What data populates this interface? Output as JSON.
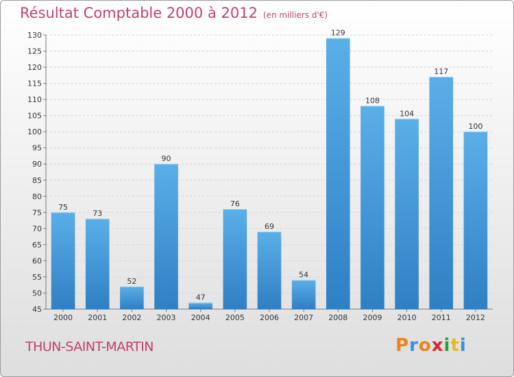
{
  "chart_data": {
    "type": "bar",
    "title": "Résultat Comptable 2000 à 2012",
    "subtitle": "(en milliers d'€)",
    "xlabel": "",
    "ylabel": "",
    "categories": [
      "2000",
      "2001",
      "2002",
      "2003",
      "2004",
      "2005",
      "2006",
      "2007",
      "2008",
      "2009",
      "2010",
      "2011",
      "2012"
    ],
    "values": [
      75,
      73,
      52,
      90,
      47,
      76,
      69,
      54,
      129,
      108,
      104,
      117,
      100
    ],
    "ylim": [
      45,
      130
    ],
    "yticks": [
      45,
      50,
      55,
      60,
      65,
      70,
      75,
      80,
      85,
      90,
      95,
      100,
      105,
      110,
      115,
      120,
      125,
      130
    ],
    "grid": true,
    "bar_color": "#4a9de0"
  },
  "footer": {
    "commune": "THUN-SAINT-MARTIN",
    "logo_letters": [
      "P",
      "r",
      "o",
      "x",
      "i",
      "t",
      "i"
    ],
    "logo_colors": [
      "#e8851e",
      "#3b8fd6",
      "#e8851e",
      "#d8262e",
      "#2e9e3c",
      "#e8b81e",
      "#3b8fd6"
    ]
  }
}
